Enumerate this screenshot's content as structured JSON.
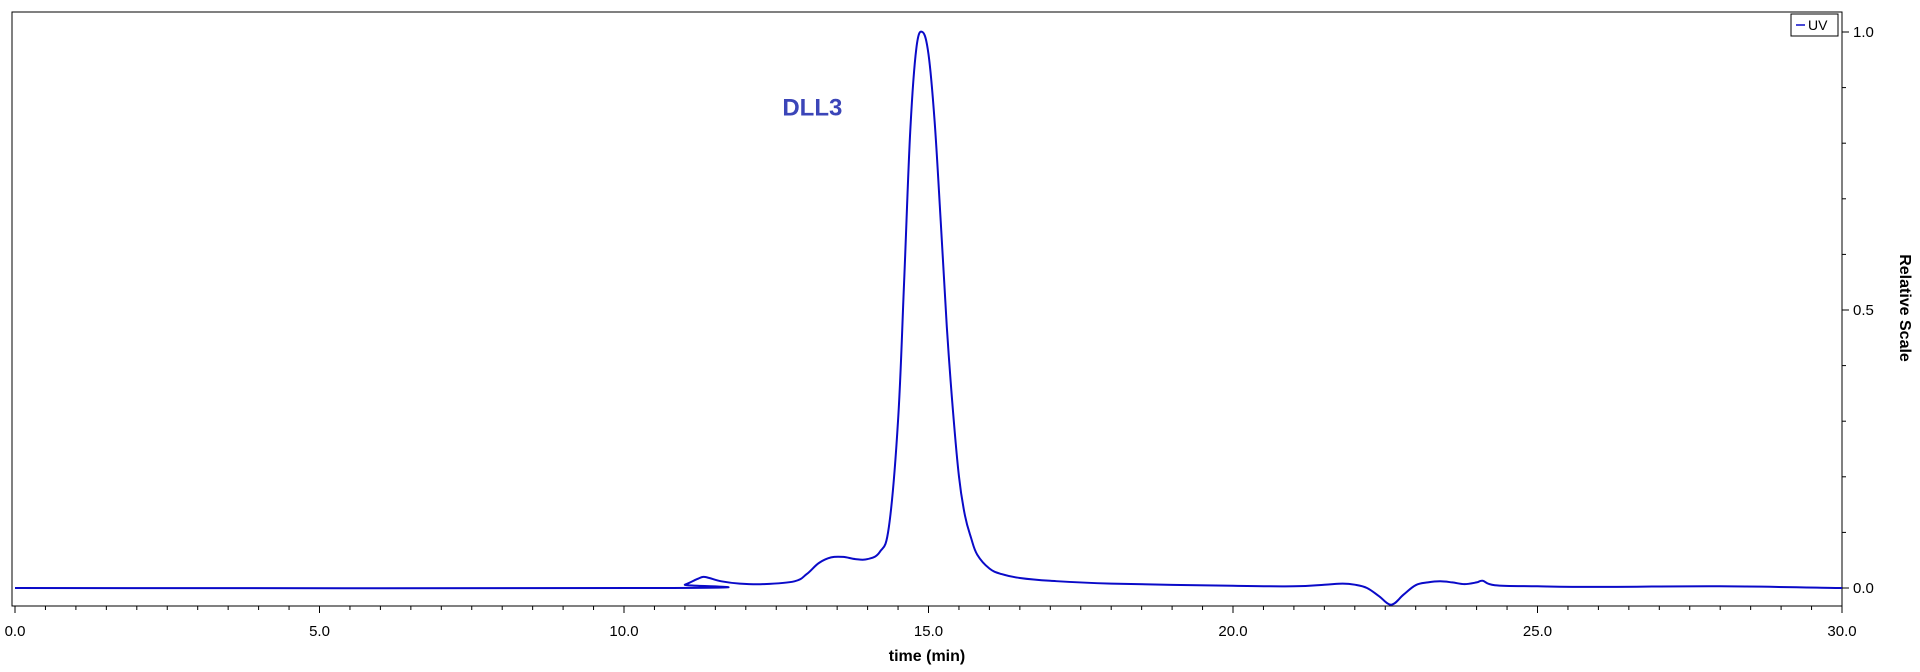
{
  "chart_data": {
    "type": "line",
    "xlabel": "time (min)",
    "ylabel": "Relative Scale",
    "xlim": [
      0,
      30
    ],
    "ylim": [
      -0.03,
      1.04
    ],
    "x_ticks": [
      0,
      5,
      10,
      15,
      20,
      25,
      30
    ],
    "x_tick_labels": [
      "0.0",
      "5.0",
      "10.0",
      "15.0",
      "20.0",
      "25.0",
      "30.0"
    ],
    "y_ticks": [
      0,
      0.5,
      1
    ],
    "y_tick_labels": [
      "0.0",
      "0.5",
      "1.0"
    ],
    "y_axis_side": "right",
    "grid": false,
    "legend_position": "top-right",
    "annotations": [
      {
        "text": "DLL3",
        "x": 12.6,
        "y": 0.85,
        "color": "#3b45b8"
      }
    ],
    "series": [
      {
        "name": "UV",
        "color": "#0a0ac8",
        "x": [
          0,
          10.8,
          11.0,
          11.2,
          11.3,
          11.4,
          11.6,
          11.9,
          12.3,
          12.8,
          13.0,
          13.2,
          13.4,
          13.6,
          13.8,
          14.0,
          14.2,
          14.35,
          14.5,
          14.6,
          14.7,
          14.8,
          14.9,
          15.0,
          15.1,
          15.2,
          15.3,
          15.4,
          15.5,
          15.6,
          15.7,
          15.8,
          16.0,
          16.2,
          16.5,
          17.0,
          18.0,
          20.0,
          21.0,
          21.5,
          21.8,
          22.0,
          22.2,
          22.4,
          22.6,
          22.8,
          23.0,
          23.2,
          23.4,
          23.6,
          23.8,
          24.0,
          24.1,
          24.3,
          25.0,
          26.0,
          28.0,
          30.0
        ],
        "values": [
          0,
          0,
          0.006,
          0.016,
          0.02,
          0.018,
          0.012,
          0.008,
          0.007,
          0.012,
          0.025,
          0.045,
          0.055,
          0.056,
          0.052,
          0.052,
          0.065,
          0.11,
          0.3,
          0.55,
          0.82,
          0.97,
          1.0,
          0.96,
          0.84,
          0.66,
          0.47,
          0.32,
          0.2,
          0.13,
          0.09,
          0.06,
          0.035,
          0.025,
          0.018,
          0.013,
          0.008,
          0.004,
          0.003,
          0.006,
          0.008,
          0.006,
          0.0,
          -0.015,
          -0.03,
          -0.012,
          0.005,
          0.01,
          0.012,
          0.01,
          0.007,
          0.01,
          0.013,
          0.005,
          0.003,
          0.002,
          0.003,
          0.0
        ]
      }
    ]
  }
}
